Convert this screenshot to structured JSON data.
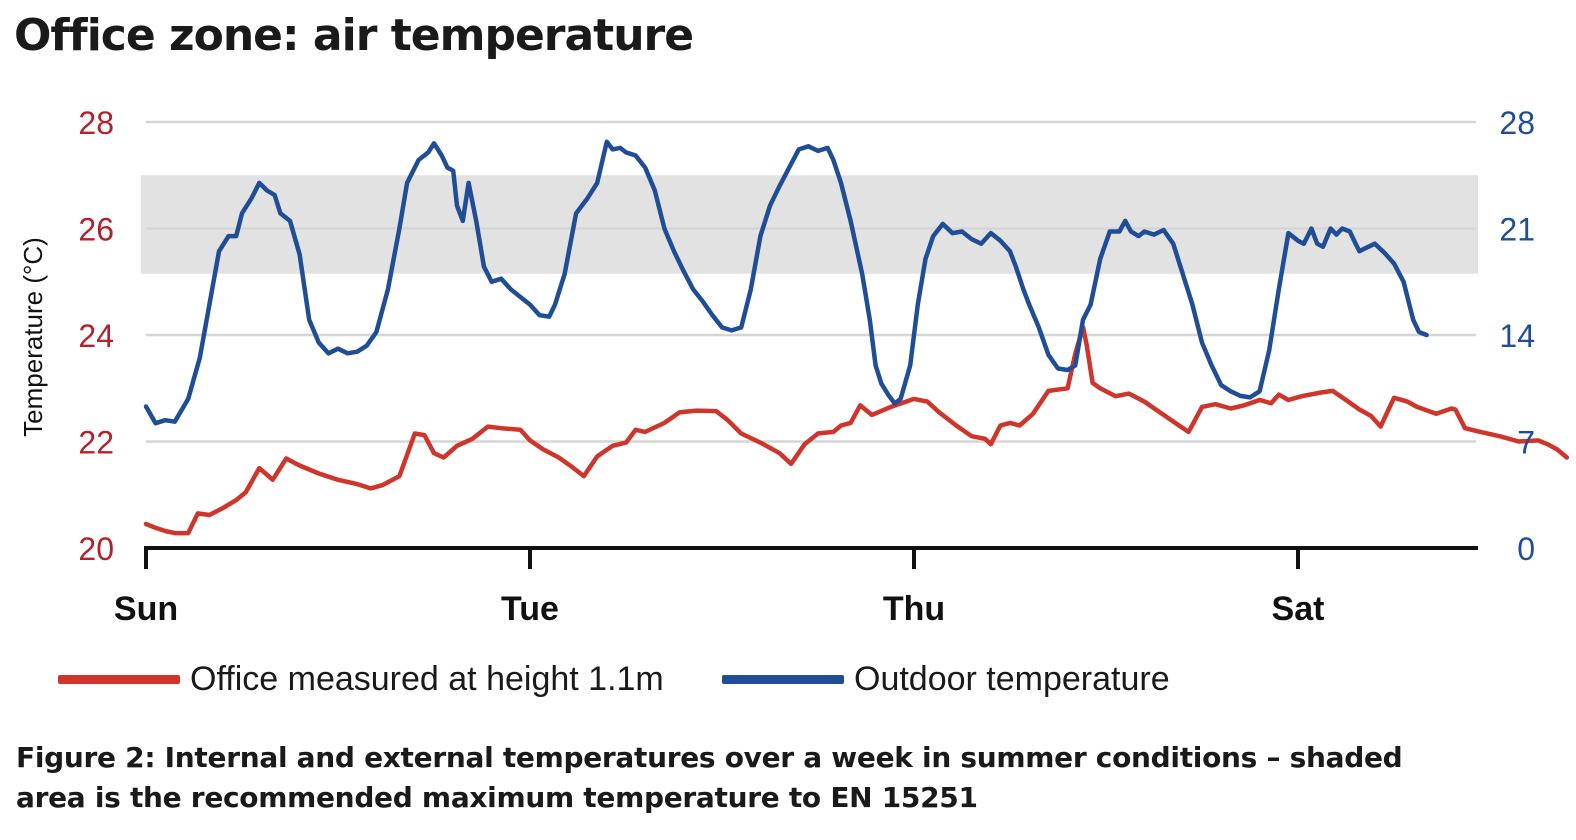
{
  "title": "Office zone: air temperature",
  "caption": "Figure 2: Internal and external temperatures over a week in summer conditions – shaded area is the recommended maximum temperature to EN 15251",
  "colors": {
    "office": "#d0352b",
    "outdoor": "#1f4e96",
    "shade": "#e2e2e2",
    "grid": "#d6d6d6",
    "axis": "#111111"
  },
  "chart_data": {
    "type": "line",
    "title": "Office zone: air temperature",
    "ylabel": "Temperature (°C)",
    "y_left": {
      "ticks": [
        "20",
        "22",
        "24",
        "26",
        "28"
      ],
      "lim": [
        20,
        28
      ],
      "color": "#b5202a"
    },
    "y_right": {
      "ticks": [
        "0",
        "7",
        "14",
        "21",
        "28"
      ],
      "lim": [
        0,
        28
      ],
      "color": "#1f4e96"
    },
    "x": {
      "lim": [
        0,
        7
      ],
      "unit": "days",
      "ticks": [
        {
          "v": 0,
          "label": "Sun"
        },
        {
          "v": 2,
          "label": "Tue"
        },
        {
          "v": 4,
          "label": "Thu"
        },
        {
          "v": 6,
          "label": "Sat"
        }
      ]
    },
    "shaded_band_left_axis": [
      25.15,
      27
    ],
    "grid": true,
    "legend_position": "bottom",
    "series": [
      {
        "name": "Office measured at height 1.1m",
        "axis": "left",
        "color": "#d0352b",
        "points": [
          [
            0,
            20.45
          ],
          [
            0.05,
            20.38
          ],
          [
            0.1,
            20.32
          ],
          [
            0.15,
            20.28
          ],
          [
            0.22,
            20.28
          ],
          [
            0.27,
            20.65
          ],
          [
            0.33,
            20.62
          ],
          [
            0.4,
            20.75
          ],
          [
            0.47,
            20.9
          ],
          [
            0.52,
            21.05
          ],
          [
            0.59,
            21.5
          ],
          [
            0.66,
            21.28
          ],
          [
            0.73,
            21.68
          ],
          [
            0.8,
            21.55
          ],
          [
            0.9,
            21.4
          ],
          [
            1.0,
            21.28
          ],
          [
            1.1,
            21.2
          ],
          [
            1.17,
            21.12
          ],
          [
            1.23,
            21.18
          ],
          [
            1.32,
            21.35
          ],
          [
            1.4,
            22.15
          ],
          [
            1.45,
            22.12
          ],
          [
            1.5,
            21.78
          ],
          [
            1.55,
            21.7
          ],
          [
            1.62,
            21.92
          ],
          [
            1.7,
            22.05
          ],
          [
            1.78,
            22.28
          ],
          [
            1.85,
            22.25
          ],
          [
            1.95,
            22.22
          ],
          [
            2.0,
            22.02
          ],
          [
            2.07,
            21.85
          ],
          [
            2.15,
            21.7
          ],
          [
            2.22,
            21.52
          ],
          [
            2.28,
            21.35
          ],
          [
            2.35,
            21.72
          ],
          [
            2.43,
            21.92
          ],
          [
            2.5,
            21.98
          ],
          [
            2.55,
            22.22
          ],
          [
            2.6,
            22.18
          ],
          [
            2.7,
            22.35
          ],
          [
            2.78,
            22.55
          ],
          [
            2.87,
            22.58
          ],
          [
            2.97,
            22.57
          ],
          [
            3.03,
            22.4
          ],
          [
            3.1,
            22.15
          ],
          [
            3.2,
            21.98
          ],
          [
            3.3,
            21.78
          ],
          [
            3.36,
            21.58
          ],
          [
            3.43,
            21.95
          ],
          [
            3.5,
            22.15
          ],
          [
            3.58,
            22.18
          ],
          [
            3.62,
            22.3
          ],
          [
            3.67,
            22.35
          ],
          [
            3.72,
            22.68
          ],
          [
            3.78,
            22.5
          ],
          [
            3.88,
            22.65
          ],
          [
            4.0,
            22.8
          ],
          [
            4.07,
            22.75
          ],
          [
            4.13,
            22.55
          ],
          [
            4.22,
            22.3
          ],
          [
            4.3,
            22.1
          ],
          [
            4.37,
            22.05
          ],
          [
            4.4,
            21.95
          ],
          [
            4.45,
            22.3
          ],
          [
            4.5,
            22.35
          ],
          [
            4.55,
            22.3
          ],
          [
            4.62,
            22.52
          ],
          [
            4.7,
            22.95
          ],
          [
            4.8,
            23.0
          ],
          [
            4.84,
            23.65
          ],
          [
            4.88,
            24.15
          ],
          [
            4.9,
            23.8
          ],
          [
            4.93,
            23.1
          ],
          [
            4.97,
            23.0
          ],
          [
            5.05,
            22.85
          ],
          [
            5.12,
            22.9
          ],
          [
            5.2,
            22.75
          ],
          [
            5.3,
            22.5
          ],
          [
            5.38,
            22.3
          ],
          [
            5.43,
            22.18
          ],
          [
            5.5,
            22.65
          ],
          [
            5.57,
            22.7
          ],
          [
            5.65,
            22.62
          ],
          [
            5.72,
            22.68
          ],
          [
            5.8,
            22.78
          ],
          [
            5.86,
            22.72
          ],
          [
            5.9,
            22.88
          ],
          [
            5.95,
            22.78
          ],
          [
            6.02,
            22.85
          ],
          [
            6.12,
            22.92
          ],
          [
            6.18,
            22.95
          ],
          [
            6.25,
            22.78
          ],
          [
            6.32,
            22.6
          ],
          [
            6.38,
            22.48
          ],
          [
            6.43,
            22.28
          ],
          [
            6.5,
            22.82
          ],
          [
            6.57,
            22.75
          ],
          [
            6.62,
            22.65
          ],
          [
            6.72,
            22.52
          ],
          [
            6.8,
            22.62
          ],
          [
            6.82,
            22.6
          ],
          [
            6.87,
            22.25
          ],
          [
            6.95,
            22.18
          ],
          [
            7.05,
            22.1
          ],
          [
            7.15,
            22.0
          ],
          [
            7.25,
            22.02
          ],
          [
            7.3,
            21.95
          ],
          [
            7.35,
            21.85
          ],
          [
            7.4,
            21.7
          ]
        ]
      },
      {
        "name": "Outdoor temperature",
        "axis": "right",
        "color": "#1f4e96",
        "points": [
          [
            0,
            9.3
          ],
          [
            0.05,
            8.2
          ],
          [
            0.1,
            8.4
          ],
          [
            0.15,
            8.3
          ],
          [
            0.22,
            9.8
          ],
          [
            0.28,
            12.5
          ],
          [
            0.33,
            16.0
          ],
          [
            0.38,
            19.5
          ],
          [
            0.43,
            20.5
          ],
          [
            0.47,
            20.5
          ],
          [
            0.5,
            22.0
          ],
          [
            0.55,
            23.0
          ],
          [
            0.59,
            24.0
          ],
          [
            0.63,
            23.5
          ],
          [
            0.67,
            23.2
          ],
          [
            0.7,
            22.0
          ],
          [
            0.75,
            21.5
          ],
          [
            0.8,
            19.3
          ],
          [
            0.85,
            15.0
          ],
          [
            0.9,
            13.5
          ],
          [
            0.95,
            12.8
          ],
          [
            1.0,
            13.1
          ],
          [
            1.05,
            12.8
          ],
          [
            1.1,
            12.9
          ],
          [
            1.15,
            13.3
          ],
          [
            1.2,
            14.2
          ],
          [
            1.26,
            17.0
          ],
          [
            1.32,
            21.0
          ],
          [
            1.36,
            24.0
          ],
          [
            1.42,
            25.5
          ],
          [
            1.47,
            26.0
          ],
          [
            1.5,
            26.6
          ],
          [
            1.54,
            25.8
          ],
          [
            1.57,
            25.0
          ],
          [
            1.6,
            24.8
          ],
          [
            1.62,
            22.5
          ],
          [
            1.65,
            21.5
          ],
          [
            1.68,
            24.0
          ],
          [
            1.72,
            21.5
          ],
          [
            1.76,
            18.5
          ],
          [
            1.8,
            17.5
          ],
          [
            1.85,
            17.7
          ],
          [
            1.9,
            17.0
          ],
          [
            1.95,
            16.5
          ],
          [
            2.0,
            16.0
          ],
          [
            2.05,
            15.3
          ],
          [
            2.1,
            15.2
          ],
          [
            2.13,
            16.0
          ],
          [
            2.18,
            18.0
          ],
          [
            2.24,
            22.0
          ],
          [
            2.3,
            23.0
          ],
          [
            2.35,
            24.0
          ],
          [
            2.4,
            26.7
          ],
          [
            2.43,
            26.2
          ],
          [
            2.47,
            26.3
          ],
          [
            2.5,
            26.0
          ],
          [
            2.55,
            25.8
          ],
          [
            2.6,
            25.0
          ],
          [
            2.65,
            23.5
          ],
          [
            2.7,
            21.0
          ],
          [
            2.75,
            19.5
          ],
          [
            2.8,
            18.2
          ],
          [
            2.85,
            17.0
          ],
          [
            2.9,
            16.2
          ],
          [
            2.95,
            15.3
          ],
          [
            3.0,
            14.5
          ],
          [
            3.05,
            14.3
          ],
          [
            3.1,
            14.5
          ],
          [
            3.15,
            17.0
          ],
          [
            3.2,
            20.5
          ],
          [
            3.25,
            22.5
          ],
          [
            3.3,
            23.8
          ],
          [
            3.35,
            25.0
          ],
          [
            3.4,
            26.2
          ],
          [
            3.45,
            26.4
          ],
          [
            3.5,
            26.1
          ],
          [
            3.55,
            26.3
          ],
          [
            3.58,
            25.5
          ],
          [
            3.62,
            24.0
          ],
          [
            3.67,
            21.5
          ],
          [
            3.73,
            18.0
          ],
          [
            3.77,
            15.0
          ],
          [
            3.8,
            12.0
          ],
          [
            3.83,
            10.8
          ],
          [
            3.87,
            10.0
          ],
          [
            3.9,
            9.5
          ],
          [
            3.93,
            9.8
          ],
          [
            3.98,
            12.0
          ],
          [
            4.02,
            16.0
          ],
          [
            4.06,
            19.0
          ],
          [
            4.1,
            20.5
          ],
          [
            4.15,
            21.3
          ],
          [
            4.2,
            20.7
          ],
          [
            4.25,
            20.8
          ],
          [
            4.3,
            20.3
          ],
          [
            4.35,
            20.0
          ],
          [
            4.4,
            20.7
          ],
          [
            4.45,
            20.2
          ],
          [
            4.5,
            19.5
          ],
          [
            4.53,
            18.5
          ],
          [
            4.57,
            17.0
          ],
          [
            4.6,
            16.0
          ],
          [
            4.65,
            14.5
          ],
          [
            4.7,
            12.7
          ],
          [
            4.75,
            11.8
          ],
          [
            4.8,
            11.7
          ],
          [
            4.84,
            12.0
          ],
          [
            4.88,
            15.0
          ],
          [
            4.92,
            16.0
          ],
          [
            4.97,
            19.0
          ],
          [
            5.02,
            20.8
          ],
          [
            5.07,
            20.8
          ],
          [
            5.1,
            21.5
          ],
          [
            5.13,
            20.8
          ],
          [
            5.17,
            20.5
          ],
          [
            5.2,
            20.8
          ],
          [
            5.25,
            20.6
          ],
          [
            5.3,
            20.9
          ],
          [
            5.35,
            20.0
          ],
          [
            5.4,
            18.0
          ],
          [
            5.45,
            16.0
          ],
          [
            5.5,
            13.5
          ],
          [
            5.55,
            12.0
          ],
          [
            5.6,
            10.7
          ],
          [
            5.65,
            10.3
          ],
          [
            5.7,
            10.0
          ],
          [
            5.75,
            9.9
          ],
          [
            5.8,
            10.3
          ],
          [
            5.85,
            13.0
          ],
          [
            5.9,
            17.0
          ],
          [
            5.95,
            20.7
          ],
          [
            6.0,
            20.2
          ],
          [
            6.03,
            20.0
          ],
          [
            6.07,
            21.0
          ],
          [
            6.1,
            20.0
          ],
          [
            6.13,
            19.8
          ],
          [
            6.17,
            21.0
          ],
          [
            6.2,
            20.6
          ],
          [
            6.23,
            21.0
          ],
          [
            6.27,
            20.8
          ],
          [
            6.3,
            20.0
          ],
          [
            6.32,
            19.5
          ],
          [
            6.35,
            19.7
          ],
          [
            6.4,
            20.0
          ],
          [
            6.45,
            19.4
          ],
          [
            6.5,
            18.7
          ],
          [
            6.55,
            17.5
          ],
          [
            6.6,
            15.0
          ],
          [
            6.63,
            14.2
          ],
          [
            6.67,
            14.0
          ]
        ]
      }
    ]
  },
  "legend": [
    {
      "label": "Office measured at height 1.1m",
      "color": "#d0352b"
    },
    {
      "label": "Outdoor temperature",
      "color": "#1f4e96"
    }
  ]
}
